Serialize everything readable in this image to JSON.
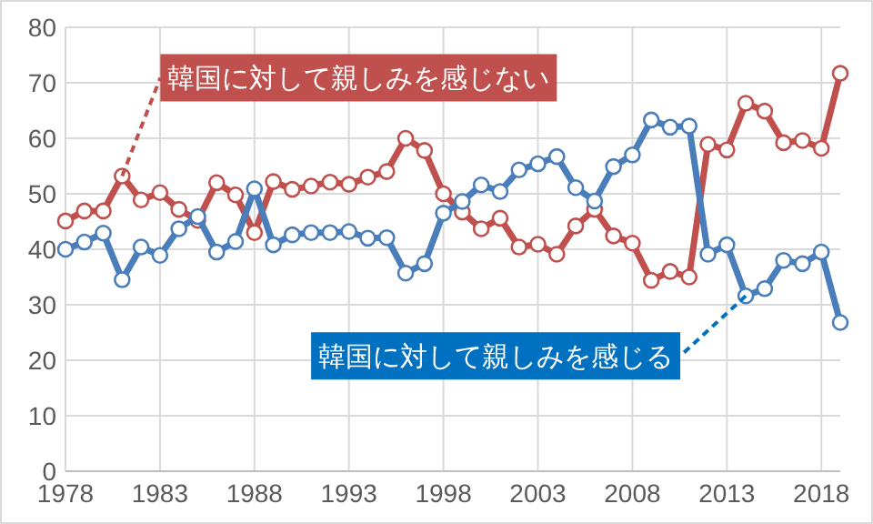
{
  "chart_data": {
    "type": "line",
    "x": [
      1978,
      1979,
      1980,
      1981,
      1982,
      1983,
      1984,
      1985,
      1986,
      1987,
      1988,
      1989,
      1990,
      1991,
      1992,
      1993,
      1994,
      1995,
      1996,
      1997,
      1998,
      1999,
      2000,
      2001,
      2002,
      2003,
      2004,
      2005,
      2006,
      2007,
      2008,
      2009,
      2010,
      2011,
      2012,
      2013,
      2014,
      2015,
      2016,
      2017,
      2018,
      2019
    ],
    "series": [
      {
        "name": "韓国に対して親しみを感じない",
        "color": "#c0504d",
        "values": [
          45.1,
          46.9,
          46.9,
          53.2,
          48.9,
          50.2,
          47.2,
          45.2,
          52,
          49.8,
          43,
          52.2,
          50.8,
          51.4,
          52.1,
          51.7,
          53,
          54,
          60,
          57.8,
          50,
          46.7,
          43.7,
          45.6,
          40.4,
          40.9,
          39.1,
          44.2,
          47.2,
          42.4,
          41.1,
          34.4,
          36,
          35,
          58.9,
          57.9,
          66.3,
          64.9,
          59.2,
          59.6,
          58.2,
          71.7
        ]
      },
      {
        "name": "韓国に対して親しみを感じる",
        "color": "#4a7ebb",
        "values": [
          40,
          41.3,
          42.9,
          34.5,
          40.4,
          38.9,
          43.7,
          45.9,
          39.5,
          41.4,
          50.9,
          40.8,
          42.6,
          43,
          43,
          43.2,
          42,
          42.1,
          35.7,
          37.4,
          46.5,
          48.6,
          51.6,
          50.4,
          54.3,
          55.4,
          56.7,
          51.1,
          48.7,
          54.9,
          57,
          63.3,
          62,
          62.2,
          39.1,
          40.8,
          31.6,
          32.9,
          38,
          37.4,
          39.5,
          26.8
        ]
      }
    ],
    "xlim": [
      1978,
      2019
    ],
    "xticks": [
      1978,
      1983,
      1988,
      1993,
      1998,
      2003,
      2008,
      2013,
      2018
    ],
    "ylim": [
      0,
      80
    ],
    "yticks": [
      0,
      10,
      20,
      30,
      40,
      50,
      60,
      70,
      80
    ],
    "grid": true,
    "marker": "circle",
    "line_style": "solid"
  }
}
